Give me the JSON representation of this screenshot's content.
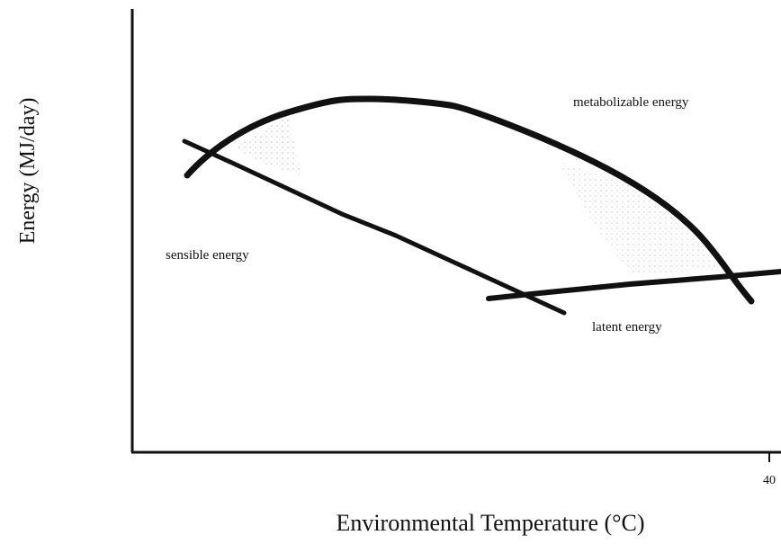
{
  "axes": {
    "x_label": "Environmental Temperature (°C)",
    "y_label": "Energy (MJ/day)",
    "x_tick": "40"
  },
  "labels": {
    "metabolizable": "metabolizable energy",
    "sensible": "sensible energy",
    "latent": "latent energy"
  }
}
